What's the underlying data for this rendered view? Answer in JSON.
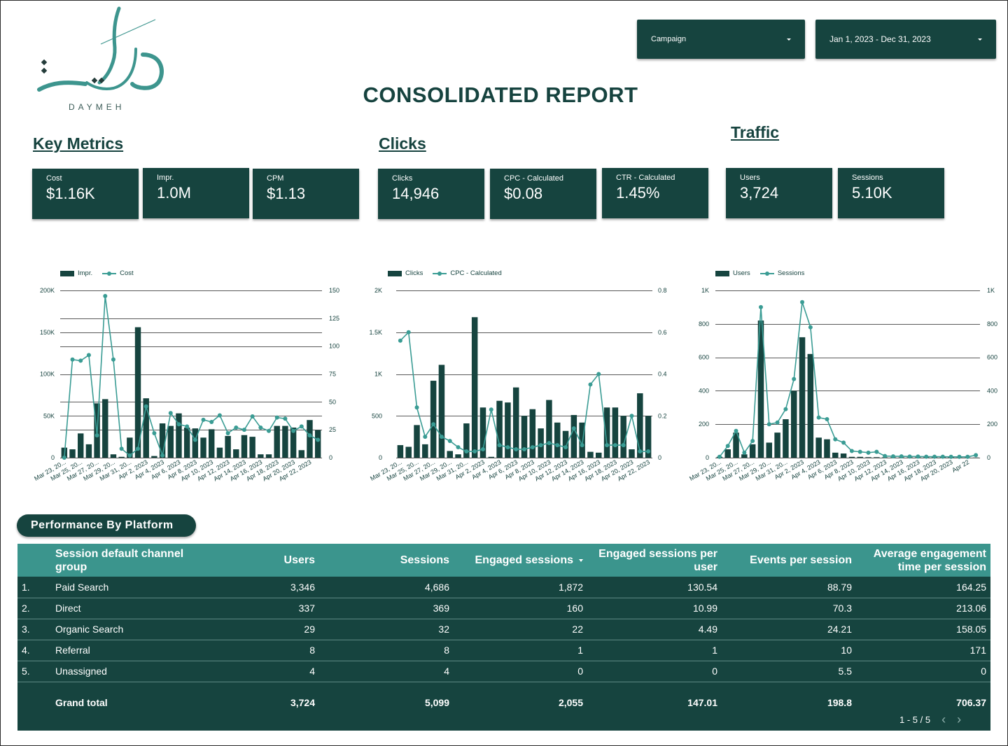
{
  "brand": {
    "name": "DAYMEH",
    "colors": {
      "dark": "#16443f",
      "accent": "#3a9c94",
      "header": "#3b958d"
    }
  },
  "filters": {
    "campaign_label": "Campaign",
    "date_range": "Jan 1, 2023 - Dec 31, 2023"
  },
  "title": "CONSOLIDATED REPORT",
  "sections": {
    "key_metrics": "Key Metrics",
    "clicks": "Clicks",
    "traffic": "Traffic"
  },
  "cards": [
    {
      "label": "Cost",
      "value": "$1.16K"
    },
    {
      "label": "Impr.",
      "value": "1.0M"
    },
    {
      "label": "CPM",
      "value": "$1.13"
    },
    {
      "label": "Clicks",
      "value": "14,946"
    },
    {
      "label": "CPC - Calculated",
      "value": "$0.08"
    },
    {
      "label": "CTR - Calculated",
      "value": "1.45%"
    },
    {
      "label": "Users",
      "value": "3,724"
    },
    {
      "label": "Sessions",
      "value": "5.10K"
    }
  ],
  "chart_data": [
    {
      "type": "bar+line",
      "bar_series": {
        "name": "Impr.",
        "values": [
          12000,
          10000,
          29000,
          16000,
          65000,
          70000,
          4000,
          1000,
          24000,
          156000,
          71000,
          2000,
          41000,
          38000,
          53000,
          36000,
          35000,
          24000,
          34000,
          12000,
          26000,
          10000,
          27000,
          25000,
          4000,
          4000,
          38000,
          38000,
          36000,
          9000,
          45000,
          33000
        ]
      },
      "line_series": {
        "name": "Cost",
        "values": [
          0,
          88,
          87,
          92,
          20,
          145,
          88,
          8,
          2,
          8,
          46,
          22,
          2,
          40,
          30,
          28,
          16,
          34,
          32,
          38,
          22,
          27,
          25,
          37,
          27,
          24,
          36,
          35,
          24,
          28,
          20,
          16
        ]
      },
      "categories": [
        "Mar 23, 20...",
        "Mar 24",
        "Mar 25, 20...",
        "Mar 26",
        "Mar 27, 20...",
        "Mar 28",
        "Mar 29, 20...",
        "Mar 30",
        "Mar 31, 20...",
        "Apr 1",
        "Apr 2, 2023",
        "Apr 3",
        "Apr 4, 2023",
        "Apr 5",
        "Apr 6, 2023",
        "Apr 7",
        "Apr 8, 2023",
        "Apr 9",
        "Apr 10, 2023",
        "Apr 11",
        "Apr 12, 2023",
        "Apr 13",
        "Apr 14, 2023",
        "Apr 15",
        "Apr 16, 2023",
        "Apr 17",
        "Apr 18, 2023",
        "Apr 19",
        "Apr 20, 2023",
        "Apr 21",
        "Apr 22, 2023",
        "Apr 23"
      ],
      "left_ticks": [
        "0",
        "50K",
        "100K",
        "150K",
        "200K"
      ],
      "left_max": 200000,
      "right_ticks": [
        "0",
        "25",
        "50",
        "75",
        "100",
        "125",
        "150"
      ],
      "right_max": 150
    },
    {
      "type": "bar+line",
      "bar_series": {
        "name": "Clicks",
        "values": [
          150,
          130,
          390,
          160,
          920,
          1110,
          80,
          40,
          410,
          1680,
          600,
          10,
          680,
          660,
          840,
          500,
          580,
          350,
          690,
          420,
          320,
          510,
          420,
          70,
          60,
          600,
          600,
          500,
          100,
          770,
          500
        ]
      },
      "line_series": {
        "name": "CPC - Calculated",
        "values": [
          0.56,
          0.6,
          0.24,
          0.1,
          0.16,
          0.1,
          0.08,
          0.05,
          0.03,
          0.03,
          0.04,
          0.23,
          0.06,
          0.05,
          0.04,
          0.04,
          0.05,
          0.06,
          0.07,
          0.06,
          0.05,
          0.14,
          0.06,
          0.35,
          0.4,
          0.06,
          0.06,
          0.06,
          0.2,
          0.03,
          0.03
        ]
      },
      "categories": [
        "Mar 23, 20...",
        "Mar 24",
        "Mar 25, 20...",
        "Mar 26",
        "Mar 27, 20...",
        "Mar 28",
        "Mar 29, 20...",
        "Mar 30",
        "Mar 31, 20...",
        "Apr 1",
        "Apr 2, 2023",
        "Apr 3",
        "Apr 4, 2023",
        "Apr 5",
        "Apr 6, 2023",
        "Apr 7",
        "Apr 8, 2023",
        "Apr 9",
        "Apr 10, 2023",
        "Apr 11",
        "Apr 12, 2023",
        "Apr 13",
        "Apr 14, 2023",
        "Apr 15",
        "Apr 16, 2023",
        "Apr 17",
        "Apr 18, 2023",
        "Apr 19",
        "Apr 20, 2023",
        "Apr 21",
        "Apr 22, 2023"
      ],
      "left_ticks": [
        "0",
        "500",
        "1K",
        "1.5K",
        "2K"
      ],
      "left_max": 2000,
      "right_ticks": [
        "0",
        "0.2",
        "0.4",
        "0.6",
        "0.8"
      ],
      "right_max": 0.8
    },
    {
      "type": "bar+line",
      "bar_series": {
        "name": "Users",
        "values": [
          5,
          50,
          150,
          20,
          80,
          820,
          90,
          150,
          230,
          400,
          720,
          620,
          120,
          110,
          30,
          25,
          5,
          5,
          3,
          3,
          2,
          2,
          2,
          2,
          2,
          2,
          2,
          2,
          2,
          1,
          1,
          1
        ]
      },
      "line_series": {
        "name": "Sessions",
        "values": [
          5,
          70,
          160,
          30,
          100,
          900,
          200,
          210,
          290,
          470,
          930,
          780,
          240,
          230,
          110,
          90,
          40,
          35,
          30,
          35,
          10,
          8,
          8,
          7,
          7,
          6,
          6,
          6,
          5,
          5,
          5,
          15
        ]
      },
      "categories": [
        "Mar 23, 20...",
        "Mar 24",
        "Mar 25, 20...",
        "Mar 26",
        "Mar 27, 20...",
        "Mar 28",
        "Mar 29, 20...",
        "Mar 30",
        "Mar 31, 20...",
        "Apr 1",
        "Apr 2, 2023",
        "Apr 3",
        "Apr 4, 2023",
        "Apr 5",
        "Apr 6, 2023",
        "Apr 7",
        "Apr 8, 2023",
        "Apr 9",
        "Apr 10, 2023",
        "Apr 11",
        "Apr 12, 2023",
        "Apr 13",
        "Apr 14, 2023",
        "Apr 15",
        "Apr 16, 2023",
        "Apr 17",
        "Apr 18, 2023",
        "Apr 19",
        "Apr 20, 2023",
        "Apr 21",
        "Apr 22",
        "Apr 23"
      ],
      "left_ticks": [
        "0",
        "200",
        "400",
        "600",
        "800",
        "1K"
      ],
      "left_max": 1000,
      "right_ticks": [
        "0",
        "200",
        "400",
        "600",
        "800",
        "1K"
      ],
      "right_max": 1000
    }
  ],
  "table": {
    "section_label": "Performance By Platform",
    "headers": {
      "channel": "Session default channel group",
      "users": "Users",
      "sessions": "Sessions",
      "engaged": "Engaged sessions",
      "engaged_per_user": "Engaged sessions per user",
      "events": "Events per session",
      "avg_time": "Average engagement time per session"
    },
    "rows": [
      {
        "idx": "1.",
        "channel": "Paid Search",
        "users": "3,346",
        "sessions": "4,686",
        "engaged": "1,872",
        "epu": "130.54",
        "eps": "88.79",
        "avg": "164.25"
      },
      {
        "idx": "2.",
        "channel": "Direct",
        "users": "337",
        "sessions": "369",
        "engaged": "160",
        "epu": "10.99",
        "eps": "70.3",
        "avg": "213.06"
      },
      {
        "idx": "3.",
        "channel": "Organic Search",
        "users": "29",
        "sessions": "32",
        "engaged": "22",
        "epu": "4.49",
        "eps": "24.21",
        "avg": "158.05"
      },
      {
        "idx": "4.",
        "channel": "Referral",
        "users": "8",
        "sessions": "8",
        "engaged": "1",
        "epu": "1",
        "eps": "10",
        "avg": "171"
      },
      {
        "idx": "5.",
        "channel": "Unassigned",
        "users": "4",
        "sessions": "4",
        "engaged": "0",
        "epu": "0",
        "eps": "5.5",
        "avg": "0"
      }
    ],
    "total": {
      "label": "Grand total",
      "users": "3,724",
      "sessions": "5,099",
      "engaged": "2,055",
      "epu": "147.01",
      "eps": "198.8",
      "avg": "706.37"
    },
    "pagination": "1 - 5 / 5"
  }
}
